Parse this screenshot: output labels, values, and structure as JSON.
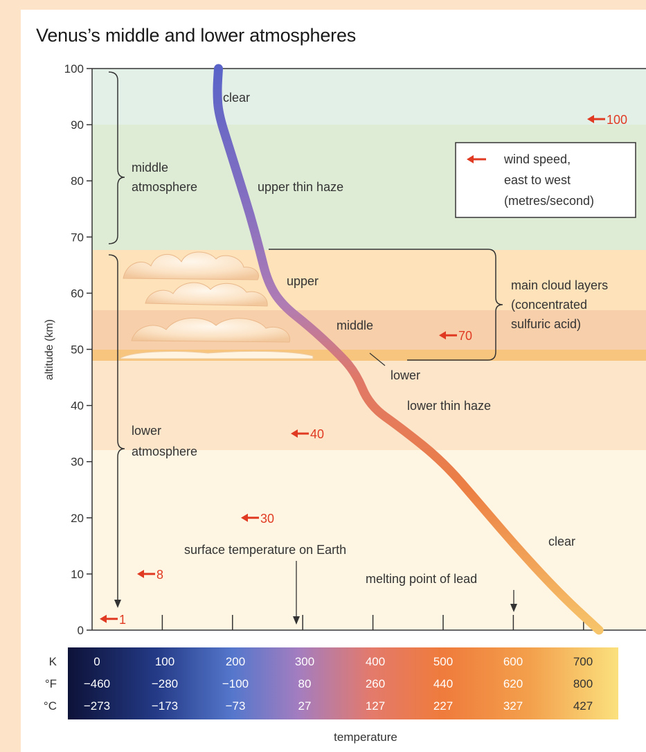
{
  "title": "Venus’s middle and lower atmospheres",
  "y_axis": {
    "label": "altitude (km)",
    "ticks": [
      "0",
      "10",
      "20",
      "30",
      "40",
      "50",
      "60",
      "70",
      "80",
      "90",
      "100"
    ]
  },
  "regions": {
    "middle_atmosphere": [
      "middle",
      "atmosphere"
    ],
    "lower_atmosphere": [
      "lower",
      "atmosphere"
    ]
  },
  "layer_labels": {
    "clear_top": "clear",
    "upper_thin_haze": "upper thin haze",
    "upper": "upper",
    "middle": "middle",
    "lower": "lower",
    "lower_thin_haze": "lower thin haze",
    "clear_bottom": "clear"
  },
  "cloud_note": [
    "main cloud layers",
    "(concentrated",
    "sulfuric acid)"
  ],
  "legend": {
    "lines": [
      "wind speed,",
      "east to west",
      "(metres/second)"
    ],
    "color": "#e03a22"
  },
  "wind_speeds": [
    {
      "value": "100",
      "altitude_km": 91
    },
    {
      "value": "70",
      "altitude_km": 52.5
    },
    {
      "value": "40",
      "altitude_km": 35
    },
    {
      "value": "30",
      "altitude_km": 20
    },
    {
      "value": "8",
      "altitude_km": 10
    },
    {
      "value": "1",
      "altitude_km": 2
    }
  ],
  "annotations": {
    "surface_temp_earth": "surface temperature on Earth",
    "melting_point_lead": "melting point of lead"
  },
  "temperature_scale": {
    "units": [
      "K",
      "°F",
      "°C"
    ],
    "kelvin": [
      "0",
      "100",
      "200",
      "300",
      "400",
      "500",
      "600",
      "700"
    ],
    "fahrenheit": [
      "−460",
      "−280",
      "−100",
      "80",
      "260",
      "440",
      "620",
      "800"
    ],
    "celsius": [
      "−273",
      "−173",
      "−73",
      "27",
      "127",
      "227",
      "327",
      "427"
    ],
    "label": "temperature"
  },
  "temperature_profile": {
    "units_x": "K",
    "units_y": "km",
    "points": [
      {
        "t": 180,
        "z": 100
      },
      {
        "t": 178,
        "z": 96
      },
      {
        "t": 180,
        "z": 92
      },
      {
        "t": 195,
        "z": 86
      },
      {
        "t": 210,
        "z": 80
      },
      {
        "t": 225,
        "z": 74
      },
      {
        "t": 238,
        "z": 68
      },
      {
        "t": 250,
        "z": 62
      },
      {
        "t": 270,
        "z": 58
      },
      {
        "t": 310,
        "z": 54
      },
      {
        "t": 345,
        "z": 50
      },
      {
        "t": 375,
        "z": 46
      },
      {
        "t": 395,
        "z": 40
      },
      {
        "t": 440,
        "z": 36
      },
      {
        "t": 500,
        "z": 30
      },
      {
        "t": 555,
        "z": 22
      },
      {
        "t": 610,
        "z": 14
      },
      {
        "t": 670,
        "z": 6
      },
      {
        "t": 722,
        "z": 0
      }
    ]
  }
}
